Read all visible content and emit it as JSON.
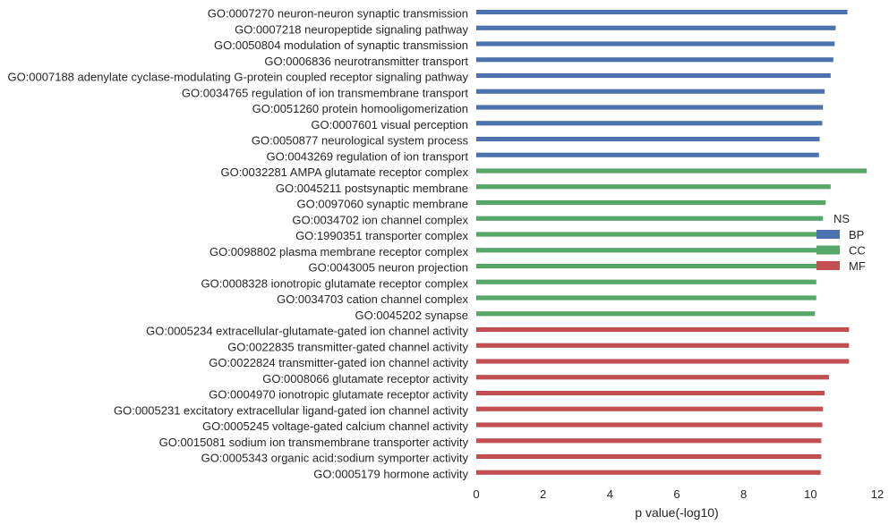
{
  "chart_data": {
    "type": "bar",
    "orientation": "horizontal",
    "title": "",
    "xlabel": "p value(-log10)",
    "ylabel": "",
    "xlim": [
      0,
      12
    ],
    "xticks": [
      "0",
      "2",
      "4",
      "6",
      "8",
      "10",
      "12"
    ],
    "grid": false,
    "legend": {
      "title": "NS",
      "placement": "right",
      "entries": [
        {
          "name": "BP",
          "color": "#4C72B0"
        },
        {
          "name": "CC",
          "color": "#55A868"
        },
        {
          "name": "MF",
          "color": "#C44E52"
        }
      ]
    },
    "series": [
      {
        "name": "BP",
        "color": "#4C72B0",
        "categories": [
          "GO:0007270 neuron-neuron synaptic transmission",
          "GO:0007218 neuropeptide signaling pathway",
          "GO:0050804 modulation of synaptic transmission",
          "GO:0006836 neurotransmitter transport",
          "GO:0007188 adenylate cyclase-modulating G-protein coupled receptor signaling pathway",
          "GO:0034765 regulation of ion transmembrane transport",
          "GO:0051260 protein homooligomerization",
          "GO:0007601 visual perception",
          "GO:0050877 neurological system process",
          "GO:0043269 regulation of ion transport"
        ],
        "values": [
          11.1,
          10.75,
          10.72,
          10.68,
          10.6,
          10.42,
          10.37,
          10.35,
          10.27,
          10.25
        ]
      },
      {
        "name": "CC",
        "color": "#55A868",
        "categories": [
          "GO:0032281 AMPA glutamate receptor complex",
          "GO:0045211 postsynaptic membrane",
          "GO:0097060 synaptic membrane",
          "GO:0034702 ion channel complex",
          "GO:1990351 transporter complex",
          "GO:0098802 plasma membrane receptor complex",
          "GO:0043005 neuron projection",
          "GO:0008328 ionotropic glutamate receptor complex",
          "GO:0034703 cation channel complex",
          "GO:0045202 synapse"
        ],
        "values": [
          11.68,
          10.6,
          10.45,
          10.37,
          10.32,
          10.3,
          10.22,
          10.17,
          10.17,
          10.13
        ]
      },
      {
        "name": "MF",
        "color": "#C44E52",
        "categories": [
          "GO:0005234 extracellular-glutamate-gated ion channel activity",
          "GO:0022835 transmitter-gated channel activity",
          "GO:0022824 transmitter-gated ion channel activity",
          "GO:0008066 glutamate receptor activity",
          "GO:0004970 ionotropic glutamate receptor activity",
          "GO:0005231 excitatory extracellular ligand-gated ion channel activity",
          "GO:0005245 voltage-gated calcium channel activity",
          "GO:0015081 sodium ion transmembrane transporter activity",
          "GO:0005343 organic acid:sodium symporter activity",
          "GO:0005179 hormone activity"
        ],
        "values": [
          11.15,
          11.15,
          11.15,
          10.55,
          10.42,
          10.37,
          10.35,
          10.32,
          10.32,
          10.3
        ]
      }
    ]
  }
}
